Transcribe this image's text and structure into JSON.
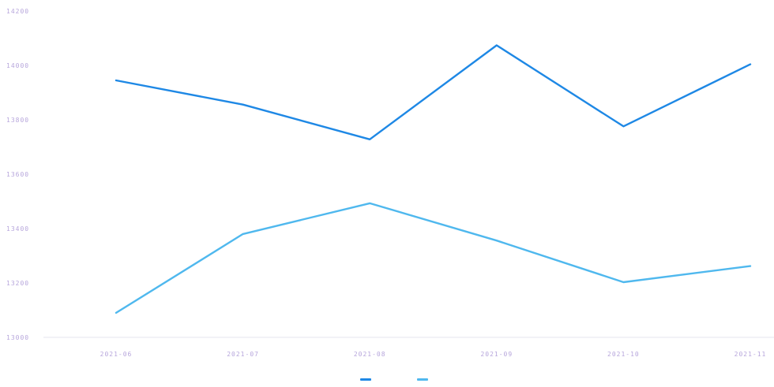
{
  "chart_data": {
    "type": "line",
    "title": "",
    "xlabel": "",
    "ylabel": "",
    "categories": [
      "2021-06",
      "2021-07",
      "2021-08",
      "2021-09",
      "2021-10",
      "2021-11"
    ],
    "y_ticks": [
      13000,
      13200,
      13400,
      13600,
      13800,
      14000,
      14200
    ],
    "y_tick_labels": [
      "13000",
      "13200",
      "13400",
      "13600",
      "13800",
      "14000",
      "14200"
    ],
    "ylim": [
      13000,
      14200
    ],
    "grid": false,
    "legend_position": "bottom-center",
    "series": [
      {
        "name": "",
        "color": "#1e88e5",
        "values": [
          13945,
          13856,
          13728,
          14074,
          13776,
          14004
        ]
      },
      {
        "name": "",
        "color": "#4fb8ee",
        "values": [
          13090,
          13380,
          13493,
          13356,
          13203,
          13262
        ]
      }
    ]
  }
}
